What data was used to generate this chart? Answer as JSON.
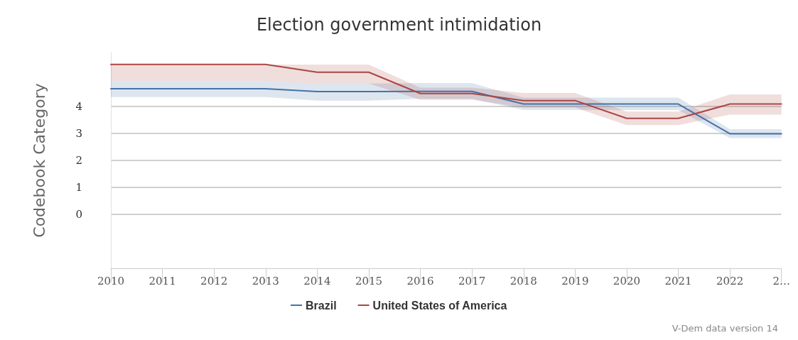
{
  "chart_data": {
    "type": "line",
    "title": "Election government intimidation",
    "ylabel": "Codebook Category",
    "categories": [
      "2010",
      "2011",
      "2012",
      "2013",
      "2014",
      "2015",
      "2016",
      "2017",
      "2018",
      "2019",
      "2020",
      "2021",
      "2022",
      "2…"
    ],
    "series": [
      {
        "name": "Brazil",
        "color": "#4572a7",
        "values": [
          4.66,
          4.66,
          4.66,
          4.66,
          4.55,
          4.55,
          4.56,
          4.56,
          4.09,
          4.09,
          4.09,
          4.09,
          2.99,
          2.99
        ],
        "lower": [
          4.35,
          4.35,
          4.35,
          4.35,
          4.22,
          4.22,
          4.28,
          4.28,
          3.87,
          3.87,
          3.87,
          3.87,
          2.83,
          2.83
        ],
        "upper": [
          4.95,
          4.95,
          4.95,
          4.95,
          4.85,
          4.85,
          4.87,
          4.87,
          4.33,
          4.33,
          4.33,
          4.33,
          3.16,
          3.16
        ]
      },
      {
        "name": "United States of America",
        "color": "#aa4643",
        "values": [
          5.56,
          5.56,
          5.56,
          5.56,
          5.27,
          5.27,
          4.48,
          4.48,
          4.22,
          4.22,
          3.56,
          3.56,
          4.09,
          4.09
        ],
        "lower": [
          4.95,
          4.95,
          4.95,
          4.95,
          4.85,
          4.85,
          4.25,
          4.25,
          3.96,
          3.96,
          3.31,
          3.31,
          3.7,
          3.7
        ],
        "upper": [
          5.55,
          5.55,
          5.55,
          5.55,
          5.55,
          5.55,
          4.7,
          4.7,
          4.5,
          4.5,
          3.81,
          3.81,
          4.45,
          4.45
        ]
      }
    ],
    "ylim": [
      -2,
      6
    ],
    "yticks": [
      0,
      1,
      2,
      3,
      4
    ],
    "grid": "y",
    "legend": "bottom",
    "marker": "none",
    "line_style": "solid",
    "annotations": [
      "V-Dem data version 14"
    ]
  }
}
